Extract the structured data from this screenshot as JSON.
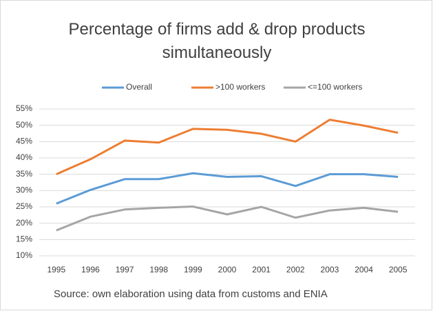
{
  "chart_data": {
    "type": "line",
    "title": "Percentage of firms add  & drop products simultaneously",
    "source": "Source: own elaboration using data from customs and ENIA",
    "categories": [
      "1995",
      "1996",
      "1997",
      "1998",
      "1999",
      "2000",
      "2001",
      "2002",
      "2003",
      "2004",
      "2005"
    ],
    "series": [
      {
        "name": "Overall",
        "color": "#5b9bd5",
        "values": [
          26,
          30.2,
          33.5,
          33.5,
          35.3,
          34.2,
          34.4,
          31.4,
          35,
          35,
          34.2
        ]
      },
      {
        "name": ">100 workers",
        "color": "#ed7d31",
        "values": [
          35,
          39.6,
          45.3,
          44.7,
          48.9,
          48.6,
          47.4,
          45,
          51.7,
          49.9,
          47.7
        ]
      },
      {
        "name": "<=100 workers",
        "color": "#a5a5a5",
        "values": [
          17.8,
          22,
          24.2,
          24.7,
          25.1,
          22.7,
          25,
          21.7,
          23.9,
          24.7,
          23.5
        ]
      }
    ],
    "ylim": [
      10,
      55
    ],
    "yticks": [
      {
        "value": 10,
        "label": "10%"
      },
      {
        "value": 15,
        "label": "15%"
      },
      {
        "value": 20,
        "label": "20%"
      },
      {
        "value": 25,
        "label": "25%"
      },
      {
        "value": 30,
        "label": "30%"
      },
      {
        "value": 35,
        "label": "35%"
      },
      {
        "value": 40,
        "label": "40%"
      },
      {
        "value": 45,
        "label": "45%"
      },
      {
        "value": 50,
        "label": "50%"
      },
      {
        "value": 55,
        "label": "55%"
      }
    ],
    "grid": true,
    "legend": "top"
  }
}
